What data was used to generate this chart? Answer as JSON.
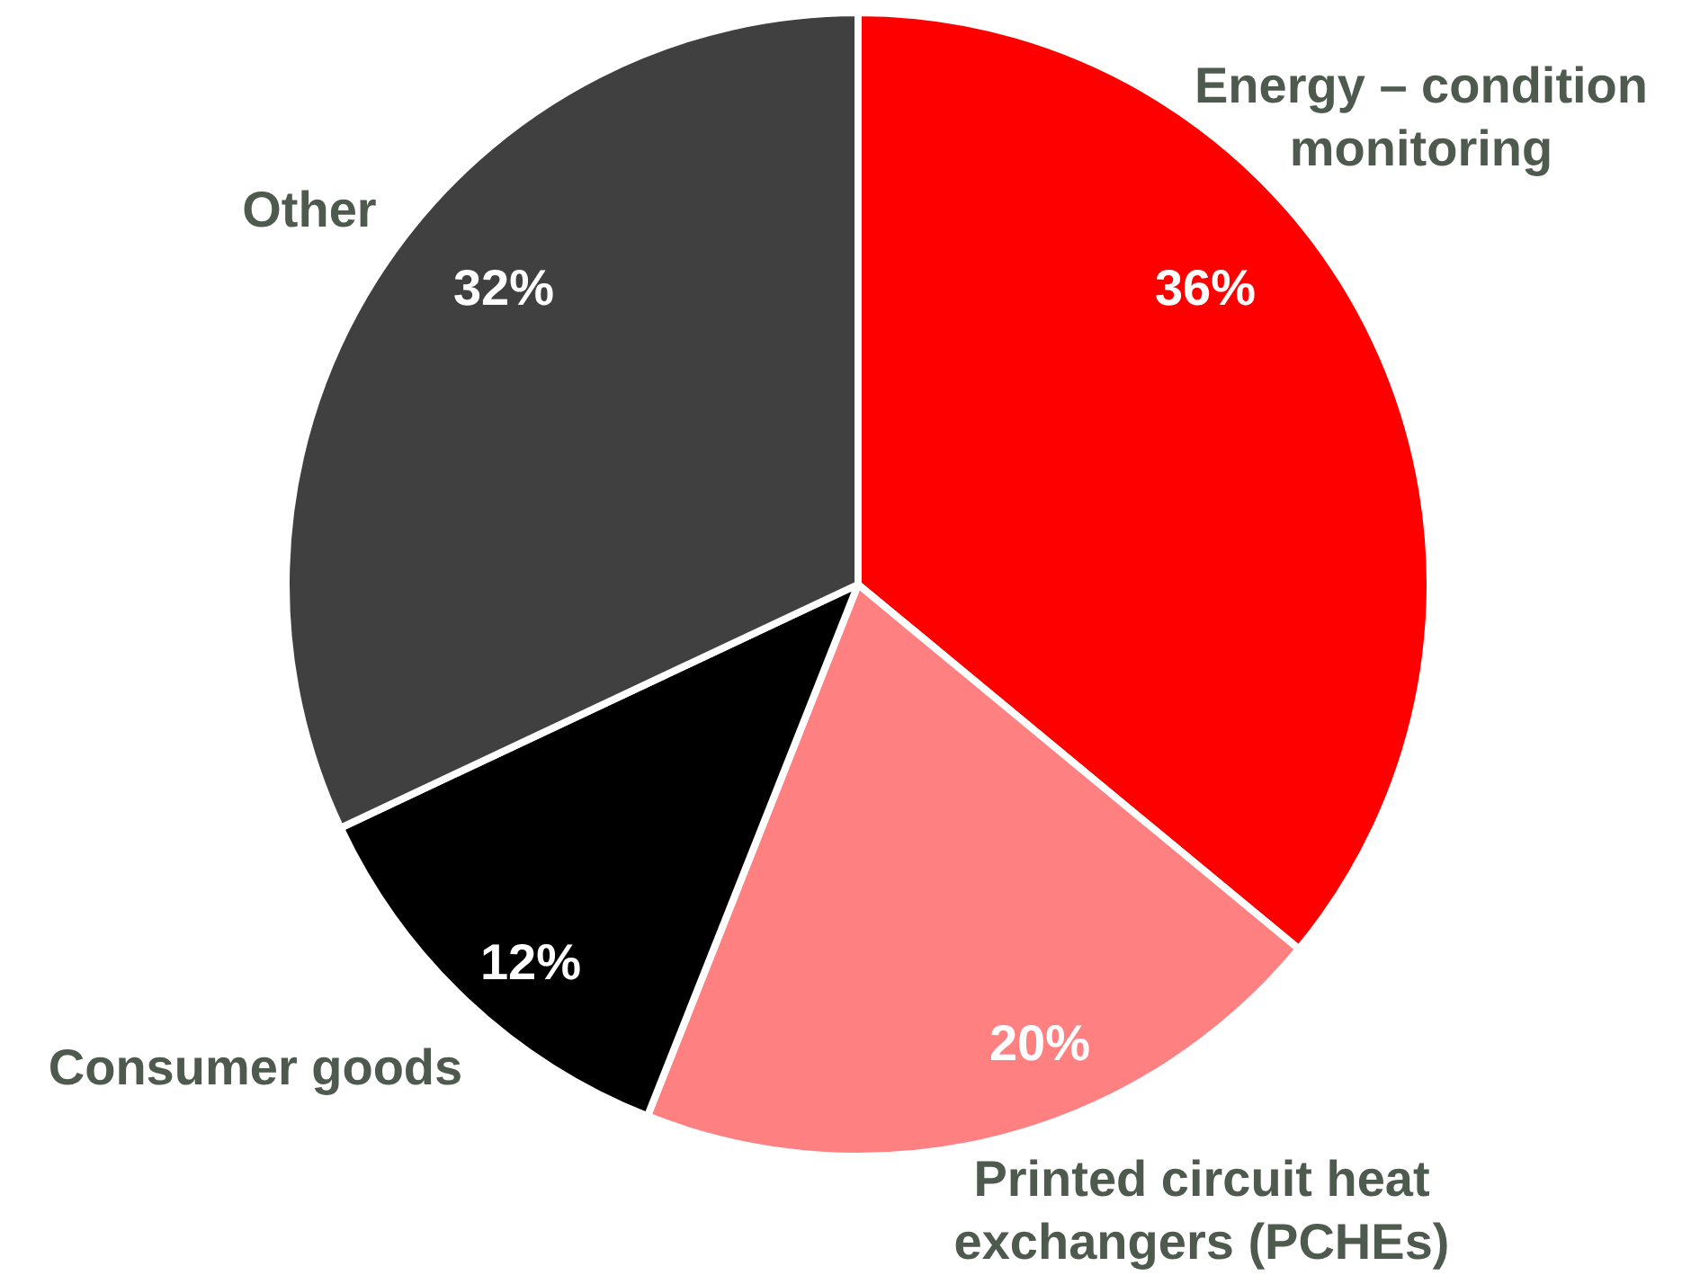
{
  "chart_data": {
    "type": "pie",
    "categories": [
      "Energy – condition monitoring",
      "Printed circuit heat exchangers (PCHEs)",
      "Consumer goods",
      "Other"
    ],
    "values": [
      36,
      20,
      12,
      32
    ],
    "colors": [
      "#ff0000",
      "#ff8080",
      "#000000",
      "#404040"
    ],
    "value_labels": [
      "36%",
      "20%",
      "12%",
      "32%"
    ]
  }
}
